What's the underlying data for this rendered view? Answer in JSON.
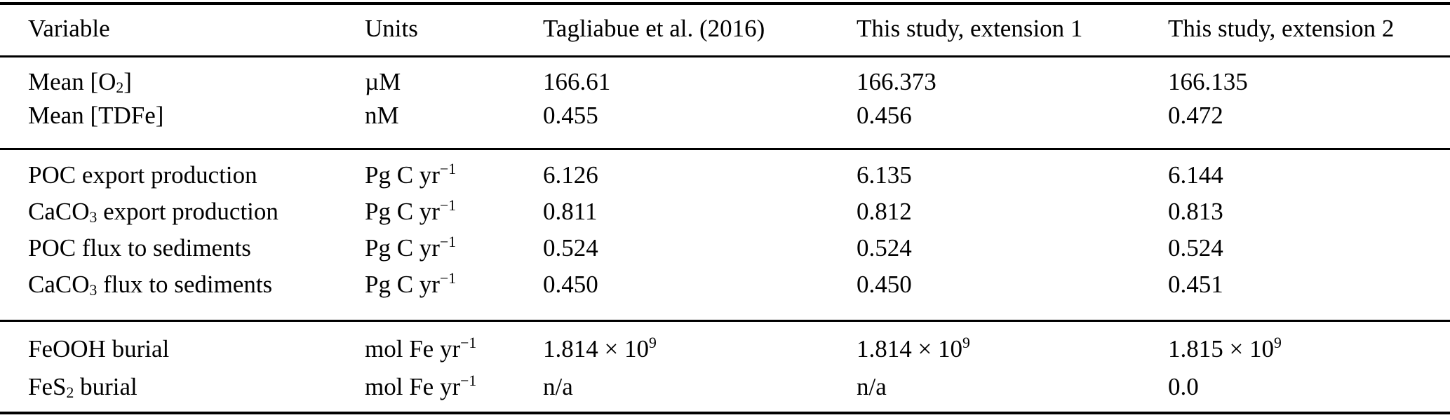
{
  "colors": {
    "background": "#ffffff",
    "text": "#000000",
    "rule": "#000000"
  },
  "table": {
    "headers": {
      "variable": "Variable",
      "units": "Units",
      "col_tagliabue": "Tagliabue et al. (2016)",
      "col_ext1": "This study, extension 1",
      "col_ext2": "This study, extension 2"
    },
    "groups": [
      {
        "rows": [
          {
            "variable": "Mean [O~2~]",
            "units": "µM",
            "values": [
              "166.61",
              "166.373",
              "166.135"
            ]
          },
          {
            "variable": "Mean [TDFe]",
            "units": "nM",
            "values": [
              "0.455",
              "0.456",
              "0.472"
            ]
          }
        ]
      },
      {
        "rows": [
          {
            "variable": "POC export production",
            "units": "Pg C yr^−1^",
            "values": [
              "6.126",
              "6.135",
              "6.144"
            ]
          },
          {
            "variable": "CaCO~3~ export production",
            "units": "Pg C yr^−1^",
            "values": [
              "0.811",
              "0.812",
              "0.813"
            ]
          },
          {
            "variable": "POC flux to sediments",
            "units": "Pg C yr^−1^",
            "values": [
              "0.524",
              "0.524",
              "0.524"
            ]
          },
          {
            "variable": "CaCO~3~ flux to sediments",
            "units": "Pg C yr^−1^",
            "values": [
              "0.450",
              "0.450",
              "0.451"
            ]
          }
        ]
      },
      {
        "rows": [
          {
            "variable": "FeOOH burial",
            "units": "mol Fe yr^−1^",
            "values": [
              "1.814 × 10^9^",
              "1.814 × 10^9^",
              "1.815 × 10^9^"
            ]
          },
          {
            "variable": "FeS~2~ burial",
            "units": "mol Fe yr^−1^",
            "values": [
              "n/a",
              "n/a",
              "0.0"
            ]
          }
        ]
      }
    ]
  }
}
